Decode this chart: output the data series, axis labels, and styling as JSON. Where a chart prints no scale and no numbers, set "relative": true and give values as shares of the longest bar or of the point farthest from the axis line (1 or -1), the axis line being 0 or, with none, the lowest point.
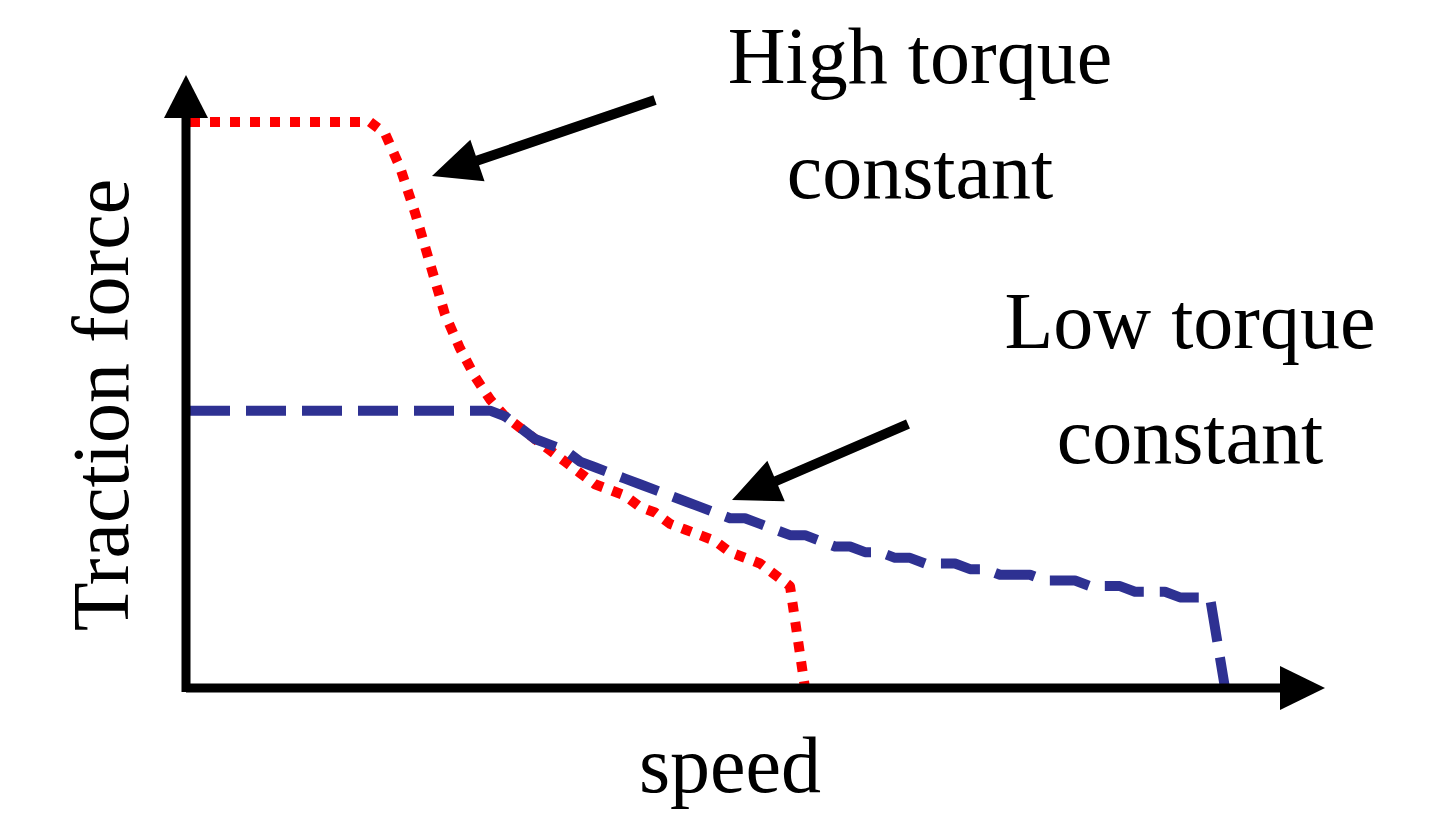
{
  "chart_data": {
    "type": "line",
    "relative": true,
    "xlabel": "speed",
    "ylabel": "Traction force",
    "categories": [
      null,
      null,
      null,
      null,
      null,
      null,
      null,
      null,
      null,
      null,
      null,
      null,
      null,
      null,
      null,
      null,
      null,
      null,
      null,
      null,
      null,
      null,
      null,
      null,
      null,
      null,
      null,
      null,
      null,
      null,
      null,
      null,
      null,
      null,
      null,
      null,
      null,
      null,
      null,
      null,
      null,
      null,
      null,
      null,
      null,
      null,
      null,
      null,
      null,
      null,
      null,
      null,
      null,
      null,
      null,
      null,
      null,
      null,
      null,
      null,
      null,
      null,
      null,
      null,
      null,
      null,
      null,
      null,
      null,
      null,
      null,
      null,
      null,
      null,
      null,
      null
    ],
    "series": [
      {
        "color": "#ff0000",
        "line_style": "dotted",
        "values": [
          1,
          1,
          1,
          1,
          1,
          1,
          1,
          1,
          1,
          1,
          1,
          1,
          1,
          0.98,
          0.92,
          0.84,
          0.75,
          0.66,
          0.6,
          0.55,
          0.51,
          0.48,
          0.46,
          0.44,
          0.42,
          0.4,
          0.38,
          0.36,
          0.35,
          0.34,
          0.32,
          0.31,
          0.29,
          0.28,
          0.27,
          0.26,
          0.24,
          0.23,
          0.22,
          0.2,
          0.18,
          0,
          null,
          null,
          null,
          null,
          null,
          null,
          null,
          null,
          null,
          null,
          null,
          null,
          null,
          null,
          null,
          null,
          null,
          null,
          null,
          null,
          null,
          null,
          null,
          null,
          null,
          null,
          null,
          null,
          null,
          null,
          null,
          null,
          null,
          null
        ]
      },
      {
        "color": "#2e3192",
        "line_style": "dashed",
        "values": [
          0.49,
          0.49,
          0.49,
          0.49,
          0.49,
          0.49,
          0.49,
          0.49,
          0.49,
          0.49,
          0.49,
          0.49,
          0.49,
          0.49,
          0.49,
          0.49,
          0.49,
          0.49,
          0.49,
          0.49,
          0.49,
          0.48,
          0.46,
          0.44,
          0.43,
          0.42,
          0.4,
          0.39,
          0.38,
          0.37,
          0.36,
          0.35,
          0.34,
          0.33,
          0.32,
          0.31,
          0.3,
          0.3,
          0.29,
          0.28,
          0.27,
          0.27,
          0.26,
          0.25,
          0.25,
          0.24,
          0.24,
          0.23,
          0.23,
          0.22,
          0.22,
          0.22,
          0.21,
          0.21,
          0.2,
          0.2,
          0.2,
          0.19,
          0.19,
          0.19,
          0.18,
          0.18,
          0.18,
          0.17,
          0.17,
          0.17,
          0.16,
          0.16,
          0.16,
          0,
          null,
          null,
          null,
          null,
          null,
          null
        ]
      }
    ],
    "annotations": [
      "High torque constant",
      "Low torque constant"
    ]
  }
}
